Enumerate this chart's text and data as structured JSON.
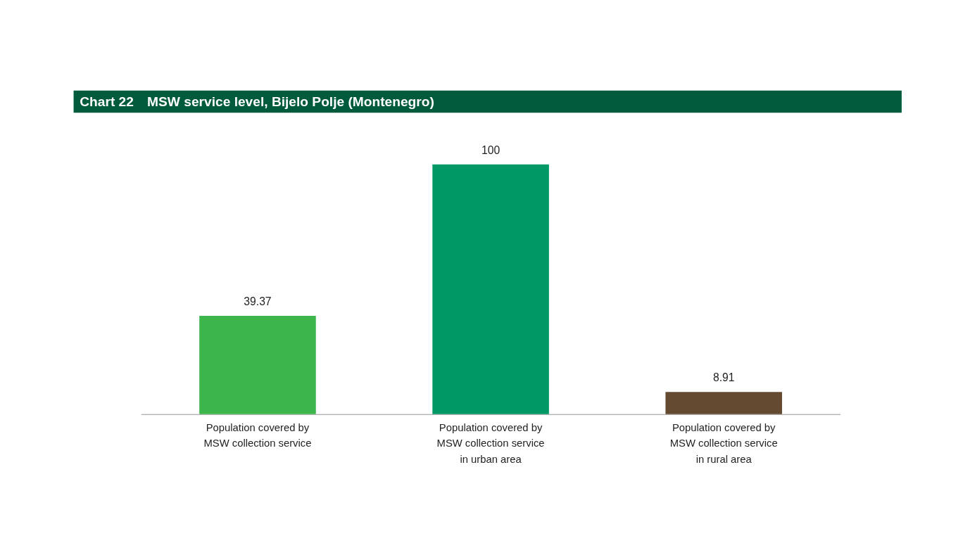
{
  "chart_data": {
    "type": "bar",
    "title": "MSW service level, Bijelo Polje (Montenegro)",
    "annotations": [
      "Chart 22"
    ],
    "categories": [
      "Population covered by\nMSW collection service",
      "Population covered by\nMSW collection service\nin urban area",
      "Population covered by\nMSW collection service\nin rural area"
    ],
    "values": [
      39.37,
      100,
      8.91
    ],
    "colors": [
      "#3cb54a",
      "#009966",
      "#654a32"
    ],
    "data_labels": true,
    "grid": false,
    "legend": false
  }
}
